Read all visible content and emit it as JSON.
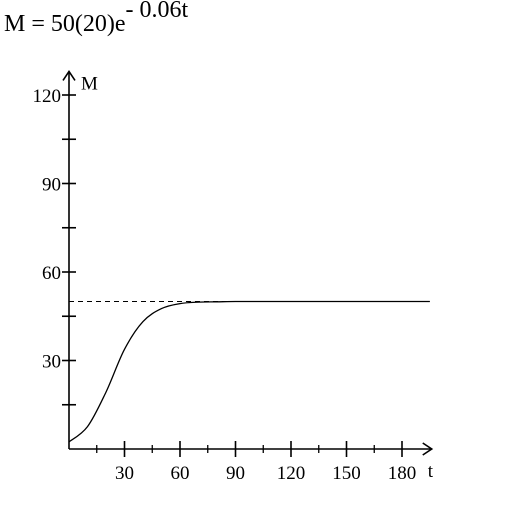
{
  "formula": {
    "lhs": "M = 50(20)",
    "base": "e",
    "exponent": "- 0.06t"
  },
  "chart_data": {
    "type": "line",
    "title": "",
    "xlabel": "t",
    "ylabel": "M",
    "xlim": [
      0,
      195
    ],
    "ylim": [
      0,
      128
    ],
    "x_ticks": [
      30,
      60,
      90,
      120,
      150,
      180
    ],
    "x_minor_ticks": [
      15,
      45,
      75,
      105,
      135,
      165
    ],
    "y_ticks": [
      30,
      60,
      90,
      120
    ],
    "y_minor_ticks": [
      15,
      45,
      75,
      105
    ],
    "asymptote": {
      "y": 50,
      "style": "dashed",
      "x_range": [
        0,
        195
      ]
    },
    "series": [
      {
        "x": [
          0,
          10,
          20,
          30,
          40,
          50,
          60,
          70,
          80,
          90,
          100,
          120,
          150,
          195
        ],
        "y": [
          2.4,
          7.6,
          19.3,
          33.8,
          43.2,
          47.6,
          49.3,
          49.8,
          49.9,
          50.0,
          50.0,
          50.0,
          50.0,
          50.0
        ]
      }
    ],
    "grid": false,
    "legend": "none"
  }
}
